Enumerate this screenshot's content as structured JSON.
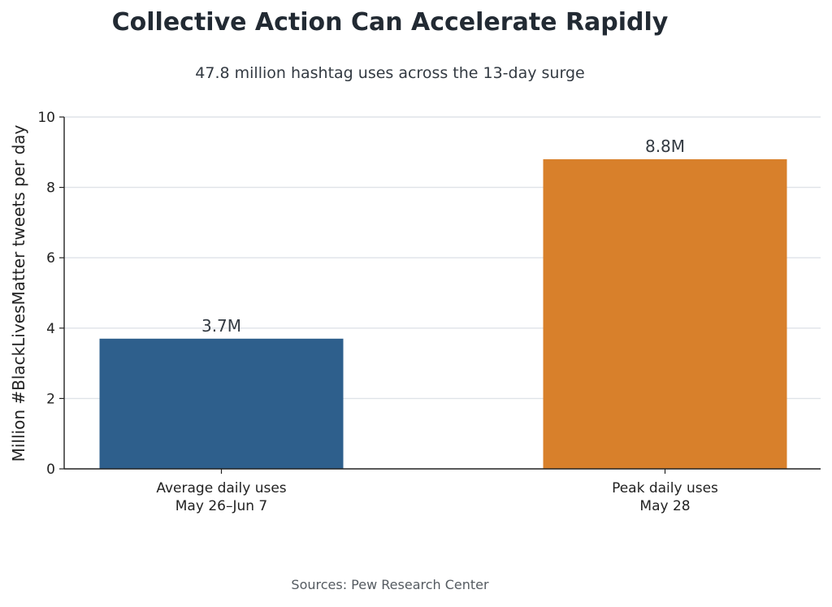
{
  "chart_data": {
    "type": "bar",
    "title": "Collective Action Can Accelerate Rapidly",
    "subtitle": "47.8 million hashtag uses across the 13-day surge",
    "ylabel": "Million #BlackLivesMatter tweets per day",
    "xlabel": "",
    "ylim": [
      0,
      10
    ],
    "yticks": [
      0,
      2,
      4,
      6,
      8,
      10
    ],
    "grid": true,
    "categories": [
      [
        "Average daily uses",
        "May 26–Jun 7"
      ],
      [
        "Peak daily uses",
        "May 28"
      ]
    ],
    "values": [
      3.7,
      8.8
    ],
    "data_labels": [
      "3.7M",
      "8.8M"
    ],
    "colors": [
      "#2e5f8c",
      "#d8802b"
    ],
    "source": "Sources: Pew Research Center"
  }
}
